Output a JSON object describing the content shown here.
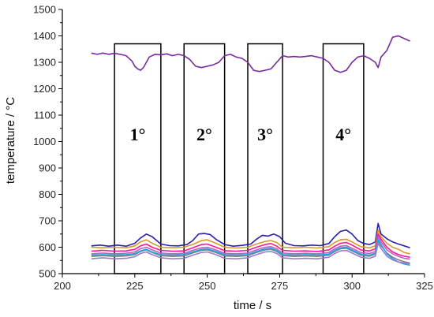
{
  "chart_data": {
    "type": "line",
    "xlabel": "time  /  s",
    "ylabel": "temperature  /  °C",
    "xlim": [
      200,
      325
    ],
    "ylim": [
      500,
      1500
    ],
    "xticks": [
      200,
      225,
      250,
      275,
      300,
      325
    ],
    "yticks": [
      500,
      600,
      700,
      800,
      900,
      1000,
      1100,
      1200,
      1300,
      1400,
      1500
    ],
    "grid": false,
    "legend": "none",
    "annotations": [
      {
        "label": "1°",
        "x_start": 218,
        "x_end": 234,
        "y_top": 1370
      },
      {
        "label": "2°",
        "x_start": 242,
        "x_end": 256,
        "y_top": 1370
      },
      {
        "label": "3°",
        "x_start": 264,
        "x_end": 276,
        "y_top": 1370
      },
      {
        "label": "4°",
        "x_start": 290,
        "x_end": 304,
        "y_top": 1370
      }
    ],
    "series": [
      {
        "color": "#7a2aa0",
        "x": [
          210,
          212,
          214,
          216,
          218,
          220,
          222,
          224,
          225,
          226,
          227,
          228,
          229,
          230,
          232,
          234,
          236,
          238,
          240,
          242,
          244,
          246,
          248,
          250,
          252,
          254,
          256,
          258,
          260,
          262,
          264,
          266,
          268,
          270,
          272,
          274,
          276,
          278,
          280,
          282,
          284,
          286,
          288,
          290,
          292,
          294,
          296,
          298,
          300,
          302,
          304,
          306,
          308,
          309,
          310,
          312,
          314,
          316,
          318,
          320
        ],
        "y": [
          1335,
          1330,
          1335,
          1330,
          1334,
          1330,
          1325,
          1305,
          1285,
          1275,
          1270,
          1280,
          1300,
          1320,
          1330,
          1328,
          1332,
          1325,
          1330,
          1325,
          1310,
          1285,
          1280,
          1285,
          1290,
          1300,
          1325,
          1330,
          1320,
          1315,
          1300,
          1270,
          1265,
          1270,
          1275,
          1300,
          1325,
          1320,
          1322,
          1320,
          1322,
          1325,
          1320,
          1315,
          1300,
          1270,
          1262,
          1270,
          1300,
          1320,
          1325,
          1315,
          1300,
          1280,
          1320,
          1345,
          1395,
          1400,
          1390,
          1380
        ]
      },
      {
        "color": "#2a1fb0",
        "x": [
          210,
          213,
          216,
          219,
          222,
          225,
          227,
          229,
          231,
          234,
          237,
          240,
          243,
          245,
          247,
          249,
          251,
          253,
          256,
          259,
          262,
          265,
          267,
          269,
          271,
          273,
          275,
          277,
          280,
          283,
          286,
          289,
          292,
          294,
          296,
          298,
          300,
          302,
          304,
          306,
          308,
          309,
          310,
          312,
          314,
          316,
          318,
          320
        ],
        "y": [
          605,
          608,
          604,
          608,
          604,
          615,
          635,
          650,
          640,
          612,
          606,
          605,
          610,
          625,
          650,
          652,
          648,
          630,
          610,
          604,
          607,
          612,
          630,
          645,
          642,
          650,
          640,
          615,
          606,
          605,
          608,
          606,
          614,
          640,
          660,
          665,
          650,
          625,
          614,
          610,
          620,
          690,
          650,
          632,
          620,
          612,
          605,
          598
        ]
      },
      {
        "color": "#d89a28",
        "x": [
          210,
          214,
          218,
          222,
          225,
          227,
          229,
          231,
          234,
          238,
          242,
          245,
          248,
          250,
          253,
          256,
          260,
          264,
          267,
          270,
          272,
          274,
          276,
          280,
          284,
          288,
          292,
          294,
          296,
          298,
          300,
          303,
          306,
          308,
          309,
          310,
          312,
          314,
          316,
          318,
          320
        ],
        "y": [
          600,
          598,
          600,
          598,
          605,
          620,
          628,
          615,
          600,
          598,
          600,
          610,
          625,
          628,
          615,
          600,
          597,
          600,
          612,
          622,
          625,
          618,
          600,
          598,
          600,
          597,
          602,
          618,
          628,
          630,
          620,
          602,
          598,
          605,
          665,
          640,
          615,
          600,
          592,
          580,
          575
        ]
      },
      {
        "color": "#ff1493",
        "x": [
          210,
          214,
          218,
          222,
          225,
          227,
          229,
          231,
          234,
          238,
          242,
          245,
          248,
          250,
          253,
          256,
          260,
          264,
          267,
          270,
          272,
          274,
          276,
          280,
          284,
          288,
          292,
          294,
          296,
          298,
          300,
          303,
          306,
          308,
          309,
          310,
          312,
          314,
          316,
          318,
          320
        ],
        "y": [
          585,
          588,
          585,
          586,
          592,
          605,
          612,
          600,
          588,
          585,
          586,
          598,
          610,
          612,
          600,
          587,
          585,
          588,
          600,
          610,
          614,
          604,
          588,
          585,
          586,
          584,
          590,
          604,
          615,
          618,
          608,
          590,
          586,
          594,
          650,
          630,
          600,
          582,
          572,
          566,
          562
        ]
      },
      {
        "color": "#c060c0",
        "x": [
          210,
          214,
          218,
          222,
          225,
          227,
          229,
          231,
          234,
          238,
          242,
          245,
          248,
          250,
          253,
          256,
          260,
          264,
          267,
          270,
          272,
          274,
          276,
          280,
          284,
          288,
          292,
          294,
          296,
          298,
          300,
          303,
          306,
          308,
          309,
          310,
          312,
          314,
          316,
          318,
          320
        ],
        "y": [
          575,
          578,
          575,
          577,
          582,
          594,
          600,
          590,
          578,
          575,
          577,
          588,
          598,
          600,
          590,
          577,
          575,
          578,
          590,
          600,
          602,
          594,
          578,
          575,
          577,
          575,
          580,
          594,
          604,
          606,
          596,
          580,
          576,
          584,
          640,
          620,
          590,
          575,
          565,
          558,
          555
        ]
      },
      {
        "color": "#808080",
        "x": [
          210,
          214,
          218,
          222,
          225,
          227,
          229,
          231,
          234,
          238,
          242,
          245,
          248,
          250,
          253,
          256,
          260,
          264,
          267,
          270,
          272,
          274,
          276,
          280,
          284,
          288,
          292,
          294,
          296,
          298,
          300,
          303,
          306,
          308,
          309,
          310,
          312,
          314,
          316,
          318,
          320
        ],
        "y": [
          565,
          568,
          565,
          567,
          572,
          584,
          590,
          580,
          568,
          565,
          567,
          578,
          588,
          590,
          580,
          567,
          565,
          568,
          580,
          590,
          592,
          584,
          568,
          565,
          567,
          565,
          570,
          584,
          594,
          596,
          586,
          570,
          566,
          574,
          625,
          605,
          578,
          562,
          552,
          545,
          540
        ]
      },
      {
        "color": "#1aa8e8",
        "x": [
          210,
          214,
          218,
          222,
          225,
          227,
          229,
          231,
          234,
          238,
          242,
          245,
          248,
          250,
          253,
          256,
          260,
          264,
          267,
          270,
          272,
          274,
          276,
          280,
          284,
          288,
          292,
          294,
          296,
          298,
          300,
          303,
          306,
          308,
          309,
          310,
          312,
          314,
          316,
          318,
          320
        ],
        "y": [
          570,
          572,
          570,
          572,
          576,
          586,
          592,
          582,
          572,
          570,
          572,
          582,
          592,
          594,
          584,
          572,
          570,
          572,
          584,
          594,
          596,
          588,
          572,
          570,
          572,
          570,
          574,
          588,
          598,
          600,
          590,
          574,
          570,
          578,
          630,
          610,
          575,
          556,
          544,
          536,
          532
        ]
      },
      {
        "color": "#9a7ad0",
        "x": [
          210,
          214,
          218,
          222,
          225,
          227,
          229,
          231,
          234,
          238,
          242,
          245,
          248,
          250,
          253,
          256,
          260,
          264,
          267,
          270,
          272,
          274,
          276,
          280,
          284,
          288,
          292,
          294,
          296,
          298,
          300,
          303,
          306,
          308,
          309,
          310,
          312,
          314,
          316,
          318,
          320
        ],
        "y": [
          556,
          560,
          556,
          558,
          564,
          576,
          582,
          572,
          560,
          556,
          558,
          570,
          580,
          582,
          572,
          558,
          556,
          560,
          572,
          582,
          584,
          576,
          560,
          556,
          558,
          556,
          562,
          576,
          586,
          588,
          578,
          562,
          558,
          566,
          615,
          595,
          566,
          552,
          544,
          540,
          538
        ]
      }
    ]
  }
}
